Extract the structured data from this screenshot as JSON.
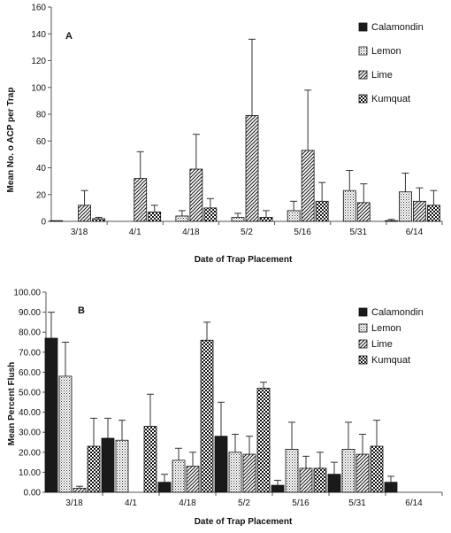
{
  "chart_data": [
    {
      "type": "bar",
      "panel_label": "A",
      "categories": [
        "3/18",
        "4/1",
        "4/18",
        "5/2",
        "5/16",
        "5/31",
        "6/14"
      ],
      "xlabel": "Date of Trap Placement",
      "ylabel": "Mean No. o ACP per Trap",
      "ylim": [
        0,
        160
      ],
      "yticks": [
        "0",
        "20",
        "40",
        "60",
        "80",
        "100",
        "120",
        "140",
        "160"
      ],
      "grid": false,
      "legend_position": "top-right",
      "series": [
        {
          "name": "Calamondin",
          "values": [
            0.5,
            0,
            0,
            0,
            0,
            0,
            0.5
          ],
          "errors": [
            0,
            0,
            0,
            0,
            0,
            0,
            1
          ]
        },
        {
          "name": "Lemon",
          "values": [
            0,
            0,
            4,
            3,
            8,
            23,
            22
          ],
          "errors": [
            0,
            0,
            4,
            3,
            7,
            15,
            14
          ]
        },
        {
          "name": "Lime",
          "values": [
            12,
            32,
            39,
            79,
            53,
            14,
            15
          ],
          "errors": [
            11,
            20,
            26,
            57,
            45,
            14,
            10
          ]
        },
        {
          "name": "Kumquat",
          "values": [
            2,
            7,
            10,
            3,
            15,
            0,
            12
          ],
          "errors": [
            1,
            5,
            7,
            5,
            14,
            0,
            11
          ]
        }
      ]
    },
    {
      "type": "bar",
      "panel_label": "B",
      "categories": [
        "3/18",
        "4/1",
        "4/18",
        "5/2",
        "5/16",
        "5/31",
        "6/14"
      ],
      "xlabel": "Date of Trap Placement",
      "ylabel": "Mean Percent Flush",
      "ylim": [
        0,
        100
      ],
      "yticks": [
        "0.00",
        "10.00",
        "20.00",
        "30.00",
        "40.00",
        "50.00",
        "60.00",
        "70.00",
        "80.00",
        "90.00",
        "100.00"
      ],
      "grid": false,
      "legend_position": "top-right",
      "series": [
        {
          "name": "Calamondin",
          "values": [
            77,
            27,
            5,
            28,
            3.5,
            9,
            5
          ],
          "errors": [
            13,
            10,
            4,
            17,
            2.5,
            6,
            3
          ]
        },
        {
          "name": "Lemon",
          "values": [
            58,
            26,
            16,
            20,
            21.5,
            21.5,
            0
          ],
          "errors": [
            17,
            10,
            6,
            9,
            13.5,
            13.5,
            0
          ]
        },
        {
          "name": "Lime",
          "values": [
            2,
            0,
            13,
            19,
            12,
            19,
            0
          ],
          "errors": [
            1,
            0,
            7,
            9,
            6,
            10,
            0
          ]
        },
        {
          "name": "Kumquat",
          "values": [
            23,
            33,
            76,
            52,
            12,
            23,
            0
          ],
          "errors": [
            14,
            16,
            9,
            3,
            8,
            13,
            0
          ]
        }
      ]
    }
  ],
  "colors": {
    "bar_fill": "#1a1a1a",
    "background": "#ffffff"
  }
}
